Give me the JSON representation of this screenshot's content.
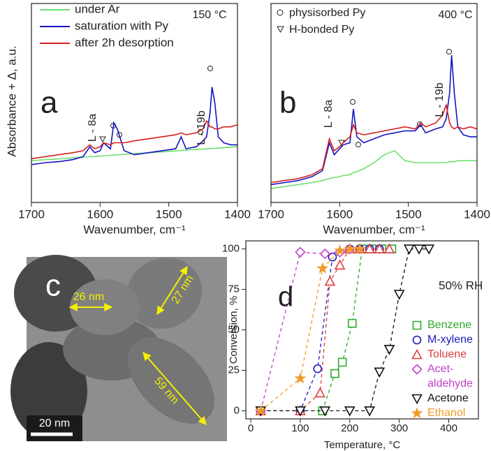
{
  "chart_data": [
    {
      "type": "line",
      "y_label": "Absorbance + Δ, a.u.",
      "x_label": "Wavenumber, cm⁻¹",
      "annotations": [
        "a",
        "150 °C",
        "L - 8a",
        "L - 19b"
      ],
      "x": [
        1700,
        1680,
        1660,
        1640,
        1625,
        1615,
        1608,
        1600,
        1595,
        1585,
        1580,
        1575,
        1565,
        1550,
        1530,
        1510,
        1490,
        1482,
        1475,
        1460,
        1450,
        1445,
        1440,
        1437,
        1433,
        1428,
        1420,
        1410,
        1400
      ],
      "series": [
        {
          "name": "under Ar",
          "color": "#6ee06e",
          "values": [
            21,
            21.5,
            21.9,
            22.4,
            22.8,
            23,
            23.1,
            23.3,
            23.5,
            23.7,
            23.8,
            23.9,
            24.2,
            24.5,
            25,
            25.4,
            25.9,
            26.1,
            26.3,
            26.6,
            26.8,
            27,
            27.1,
            27.1,
            27.2,
            27.3,
            27.5,
            27.8,
            28
          ]
        },
        {
          "name": "saturation with Py",
          "color": "#1414c0",
          "values": [
            19,
            20,
            20.5,
            21.5,
            23,
            28,
            25,
            26,
            30,
            27,
            40,
            37,
            26,
            24,
            25,
            26,
            27,
            33,
            27,
            28,
            31,
            33,
            45,
            58,
            50,
            33,
            30,
            29,
            29
          ]
        },
        {
          "name": "after 2h desorption",
          "color": "#d42020",
          "values": [
            22,
            23,
            24,
            25,
            26,
            29,
            27,
            28,
            30,
            29,
            30,
            30,
            30,
            31,
            32,
            33,
            34,
            35,
            34,
            35,
            37,
            41,
            38,
            38,
            37,
            37,
            38,
            38,
            39
          ]
        }
      ],
      "xlim": [
        1700,
        1400
      ],
      "xticks": [
        1700,
        1600,
        1500,
        1400
      ],
      "ylim": [
        0,
        100
      ]
    },
    {
      "type": "line",
      "x_label": "Wavenumber, cm⁻¹",
      "annotations": [
        "b",
        "400 °C",
        "L - 8a",
        "L - 19b"
      ],
      "marker_legend": [
        "physisorbed Py",
        "H-bonded Py"
      ],
      "x": [
        1700,
        1680,
        1660,
        1640,
        1625,
        1615,
        1608,
        1600,
        1595,
        1585,
        1580,
        1575,
        1565,
        1550,
        1535,
        1520,
        1505,
        1490,
        1482,
        1475,
        1460,
        1450,
        1445,
        1440,
        1437,
        1433,
        1428,
        1420,
        1410,
        1400
      ],
      "series": [
        {
          "color": "#6ee06e",
          "values": [
            7,
            8,
            9,
            10,
            11,
            12,
            12.5,
            13,
            13.5,
            14,
            15,
            15.5,
            17,
            20,
            24,
            26,
            21,
            20,
            20,
            20,
            20,
            20,
            20,
            20.5,
            20.5,
            20.5,
            21,
            21,
            21,
            21
          ]
        },
        {
          "color": "#1414c0",
          "values": [
            9,
            10,
            11,
            13,
            16,
            30,
            24,
            27,
            29,
            30,
            47,
            33,
            30,
            32,
            34,
            35,
            36,
            36,
            39,
            35,
            37,
            38,
            42,
            55,
            74,
            55,
            38,
            34,
            33,
            33
          ]
        },
        {
          "color": "#d42020",
          "values": [
            10,
            11,
            12,
            14,
            17,
            32,
            26,
            28,
            30,
            33,
            39,
            35,
            34,
            35,
            36,
            37,
            38,
            37,
            40,
            38,
            40,
            44,
            49,
            40,
            38,
            37,
            38,
            37,
            38,
            37
          ]
        }
      ],
      "xlim": [
        1700,
        1400
      ],
      "xticks": [
        1700,
        1600,
        1500,
        1400
      ],
      "ylim": [
        0,
        100
      ]
    },
    {
      "type": "line",
      "x_label": "Temperature, °C",
      "y_label": "Conversion, %",
      "annotations": [
        "d",
        "50% RH"
      ],
      "series": [
        {
          "name": "Benzene",
          "color": "#2ea82e",
          "marker": "square",
          "x": [
            145,
            170,
            185,
            205,
            225,
            245,
            265,
            285
          ],
          "values": [
            0,
            23,
            30,
            54,
            100,
            100,
            100,
            100
          ]
        },
        {
          "name": "M-xylene",
          "color": "#1a1ab8",
          "marker": "circle",
          "x": [
            20,
            100,
            135,
            165,
            200,
            220,
            240,
            260
          ],
          "values": [
            0,
            0,
            26,
            95,
            100,
            100,
            100,
            100
          ]
        },
        {
          "name": "Toluene",
          "color": "#e03c3c",
          "marker": "triangle-up",
          "x": [
            20,
            100,
            140,
            160,
            180,
            200,
            220,
            240,
            260,
            280
          ],
          "values": [
            0,
            0,
            11,
            80,
            90,
            100,
            100,
            100,
            100,
            100
          ]
        },
        {
          "name": "Acet-\naldehyde",
          "color": "#c040c8",
          "marker": "diamond",
          "x": [
            20,
            100,
            150,
            180,
            200
          ],
          "values": [
            0,
            98,
            97,
            98,
            100
          ]
        },
        {
          "name": "Acetone",
          "color": "#111111",
          "marker": "triangle-down",
          "x": [
            20,
            100,
            150,
            200,
            240,
            260,
            280,
            300,
            320,
            340,
            360
          ],
          "values": [
            0,
            0,
            0,
            0,
            0,
            24,
            38,
            72,
            100,
            100,
            100
          ]
        },
        {
          "name": "Ethanol",
          "color": "#f09a2a",
          "marker": "star",
          "x": [
            20,
            100,
            145,
            180,
            200,
            220
          ],
          "values": [
            0,
            20,
            88,
            99,
            100,
            100
          ]
        }
      ],
      "xlim": [
        -10,
        460
      ],
      "xticks": [
        0,
        100,
        200,
        300,
        400
      ],
      "ylim": [
        -5,
        105
      ],
      "yticks": [
        0,
        25,
        50,
        75,
        100
      ]
    }
  ],
  "image": {
    "panel_label": "c",
    "annotations": [
      "26 nm",
      "27 nm",
      "59 nm"
    ],
    "scale_bar": "20 nm"
  }
}
